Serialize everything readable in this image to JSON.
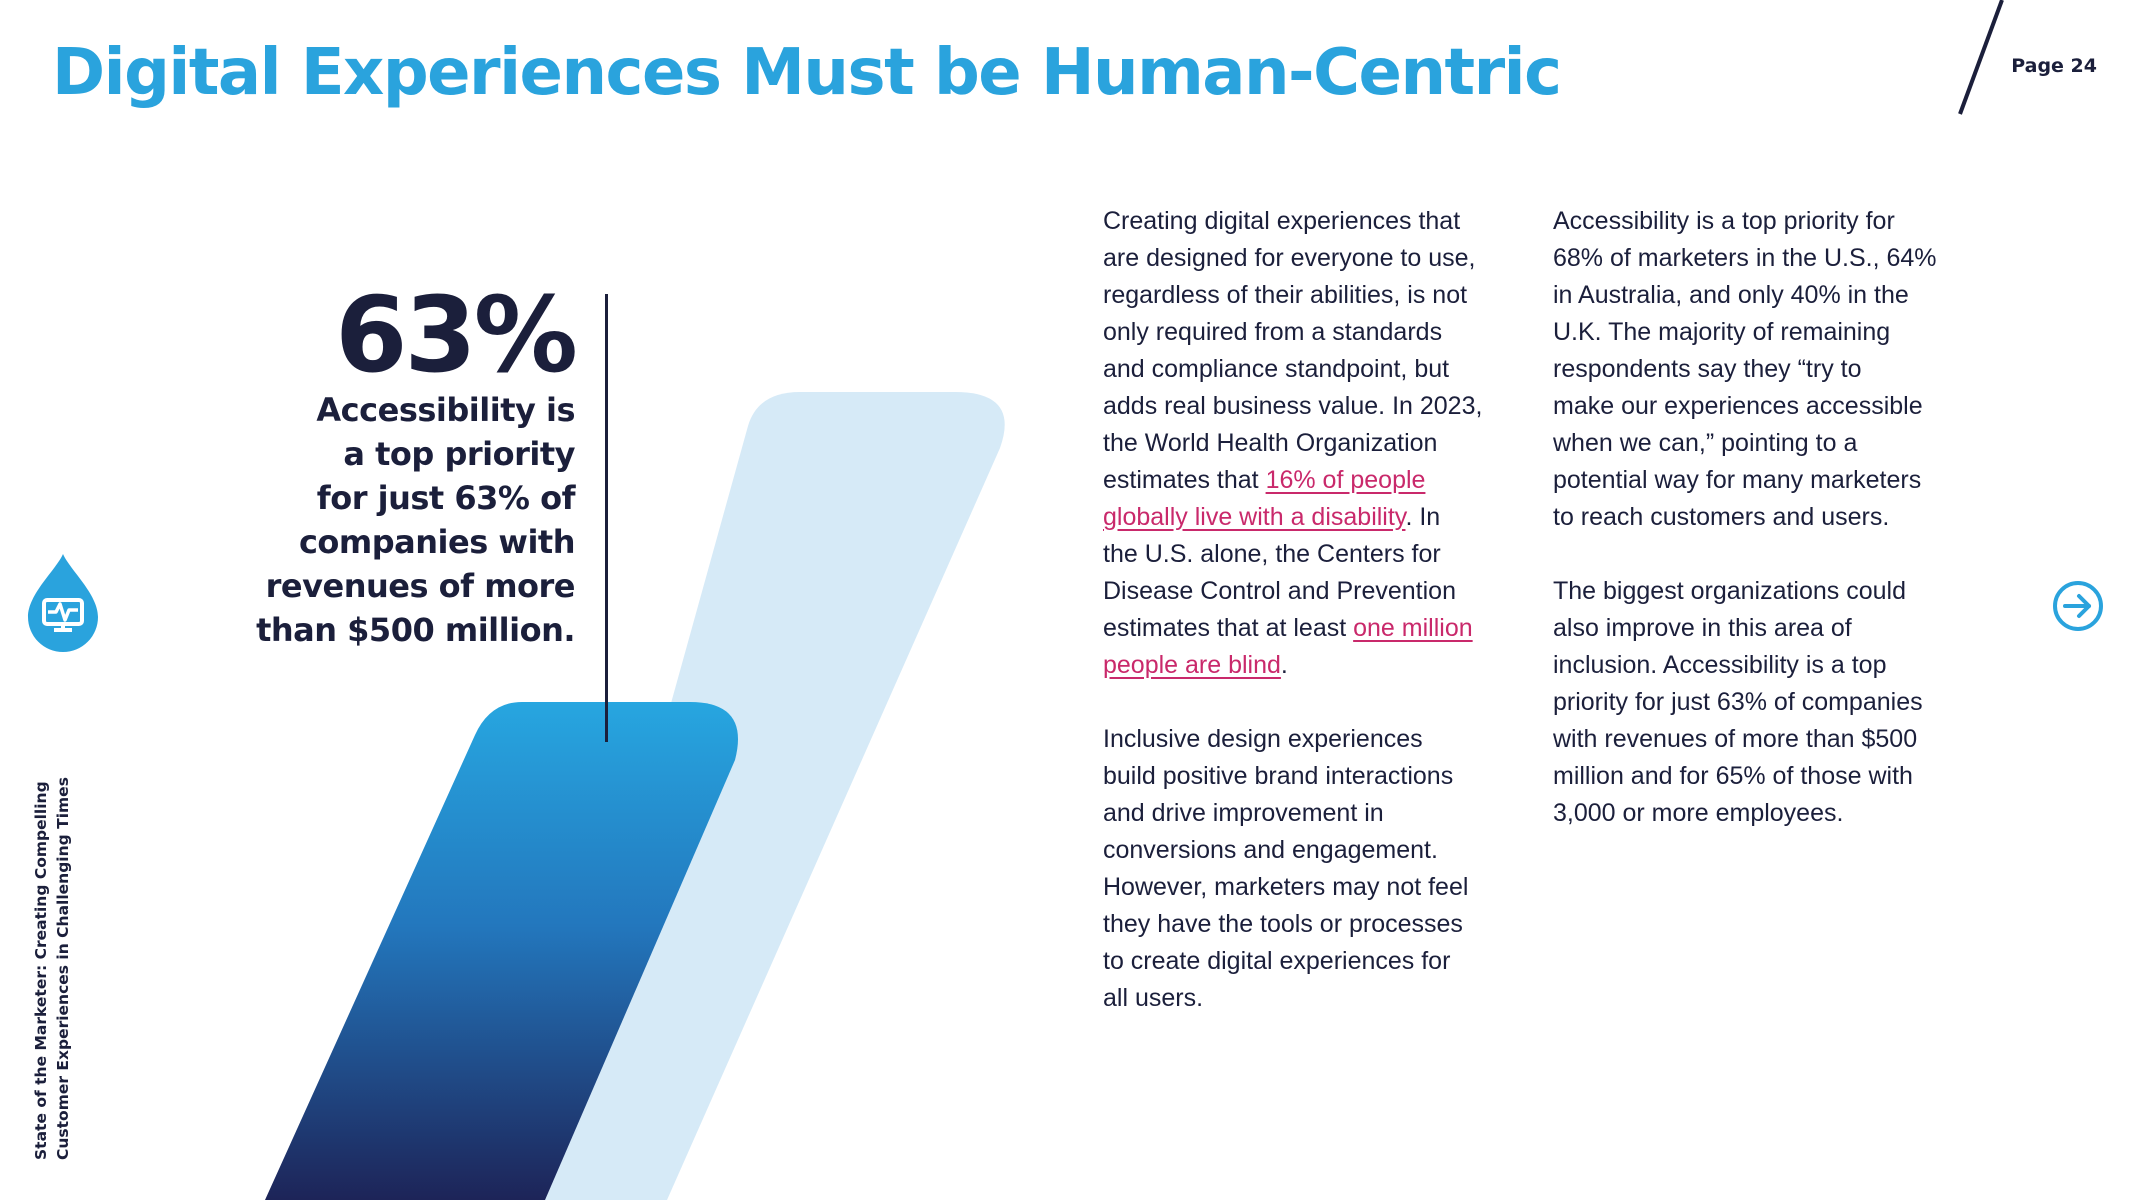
{
  "header": {
    "title": "Digital Experiences Must be Human-Centric",
    "page_label": "Page 24"
  },
  "sidebar": {
    "logo_icon": "drop-monitor-icon",
    "vertical_text_line1": "State of the Marketer: Creating Compelling",
    "vertical_text_line2": "Customer Experiences in Challenging Times"
  },
  "stat": {
    "value": "63%",
    "caption_lines": [
      "Accessibility is",
      "a top priority",
      "for just 63% of",
      "companies with",
      "revenues of more",
      "than $500 million."
    ]
  },
  "column1": {
    "p1_lines": [
      "Creating digital experiences that",
      "are designed for everyone to use,",
      "regardless of their abilities, is not",
      "only required from a standards",
      "and compliance standpoint, but",
      "adds real business value. In 2023,",
      "the World Health Organization"
    ],
    "p1_pre_link1": "estimates that ",
    "link1_line1": "16% of people",
    "link1_line2": "globally live with a disability",
    "p1_post_link1": ". In",
    "p1_lines_b": [
      "the U.S. alone, the Centers for",
      "Disease Control and Prevention"
    ],
    "p1_pre_link2": "estimates that at least ",
    "link2_line1": "one million",
    "link2_line2": "people are blind",
    "p1_end": ".",
    "p2_lines": [
      "Inclusive design experiences",
      "build positive brand interactions",
      "and drive improvement in",
      "conversions and engagement.",
      "However, marketers may not feel",
      "they have the tools or processes",
      "to create digital experiences for",
      "all users."
    ]
  },
  "column2": {
    "p1_lines": [
      "Accessibility is a top priority for",
      "68% of marketers in the U.S., 64%",
      "in Australia, and only 40% in the",
      "U.K. The majority of remaining",
      "respondents say they “try to",
      "make our experiences accessible",
      "when we can,” pointing to a",
      "potential way for many marketers",
      "to reach customers and users."
    ],
    "p2_lines": [
      "The biggest organizations could",
      "also improve in this area of",
      "inclusion. Accessibility is a top",
      "priority for just 63% of companies",
      "with revenues of more than $500",
      "million and for 65% of those with",
      "3,000 or more employees."
    ]
  },
  "navigation": {
    "next_icon": "arrow-right-circle-icon"
  },
  "colors": {
    "brand_blue": "#2aa3dd",
    "navy": "#1b1f3b",
    "light_blue": "#d6eaf7",
    "link_pink": "#c9296b"
  }
}
